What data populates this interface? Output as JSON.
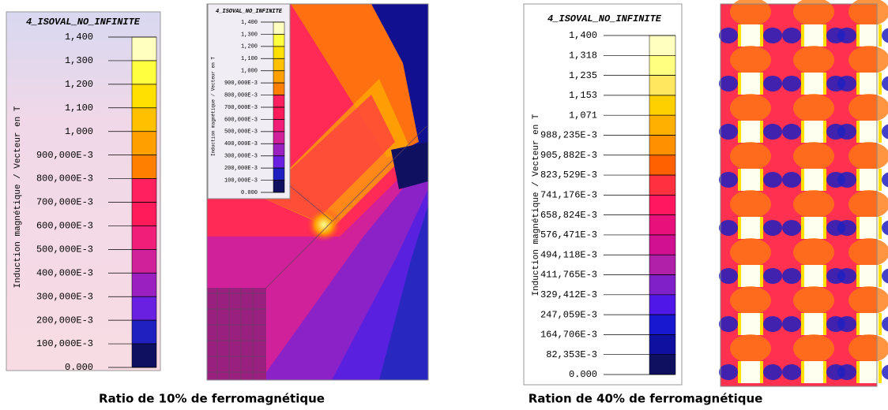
{
  "panels": [
    {
      "legend": {
        "title": "4_ISOVAL_NO_INFINITE",
        "axis_label": "Induction magnétique / Vecteur en T",
        "labels": [
          "1,400",
          "1,300",
          "1,200",
          "1,100",
          "1,000",
          "900,000E-3",
          "800,000E-3",
          "700,000E-3",
          "600,000E-3",
          "500,000E-3",
          "400,000E-3",
          "300,000E-3",
          "200,000E-3",
          "100,000E-3",
          "0.000"
        ],
        "colors": [
          "#ffffc0",
          "#ffff40",
          "#ffe000",
          "#ffc000",
          "#ffa000",
          "#ff8000",
          "#ff2060",
          "#ff1a5a",
          "#f01e78",
          "#d0209a",
          "#9a20c0",
          "#6a20e0",
          "#2020c0",
          "#101060"
        ]
      },
      "inset_legend": {
        "title": "4_ISOVAL_NO_INFINITE",
        "axis_label": "Induction magnétique / Vecteur en T",
        "labels": [
          "1,400",
          "1,300",
          "1,200",
          "1,100",
          "1,000",
          "900,000E-3",
          "800,000E-3",
          "700,000E-3",
          "600,000E-3",
          "500,000E-3",
          "400,000E-3",
          "300,000E-3",
          "200,000E-3",
          "100,000E-3",
          "0.000"
        ]
      },
      "caption": "Ratio de 10% de ferromagnétique"
    },
    {
      "legend": {
        "title": "4_ISOVAL_NO_INFINITE",
        "axis_label": "Induction magnétique / Vecteur en T",
        "labels": [
          "1,400",
          "1,318",
          "1,235",
          "1,153",
          "1,071",
          "988,235E-3",
          "905,882E-3",
          "823,529E-3",
          "741,176E-3",
          "658,824E-3",
          "576,471E-3",
          "494,118E-3",
          "411,765E-3",
          "329,412E-3",
          "247,059E-3",
          "164,706E-3",
          "82,353E-3",
          "0.000"
        ],
        "colors": [
          "#ffffc0",
          "#ffff80",
          "#ffe860",
          "#ffd000",
          "#ffb000",
          "#ff9000",
          "#ff6000",
          "#ff3040",
          "#ff1860",
          "#e8107a",
          "#d01090",
          "#b020a8",
          "#8020c8",
          "#5018e8",
          "#1818d0",
          "#1010a0",
          "#101060"
        ]
      },
      "caption": "Ration de 40% de ferromagnétique"
    }
  ]
}
